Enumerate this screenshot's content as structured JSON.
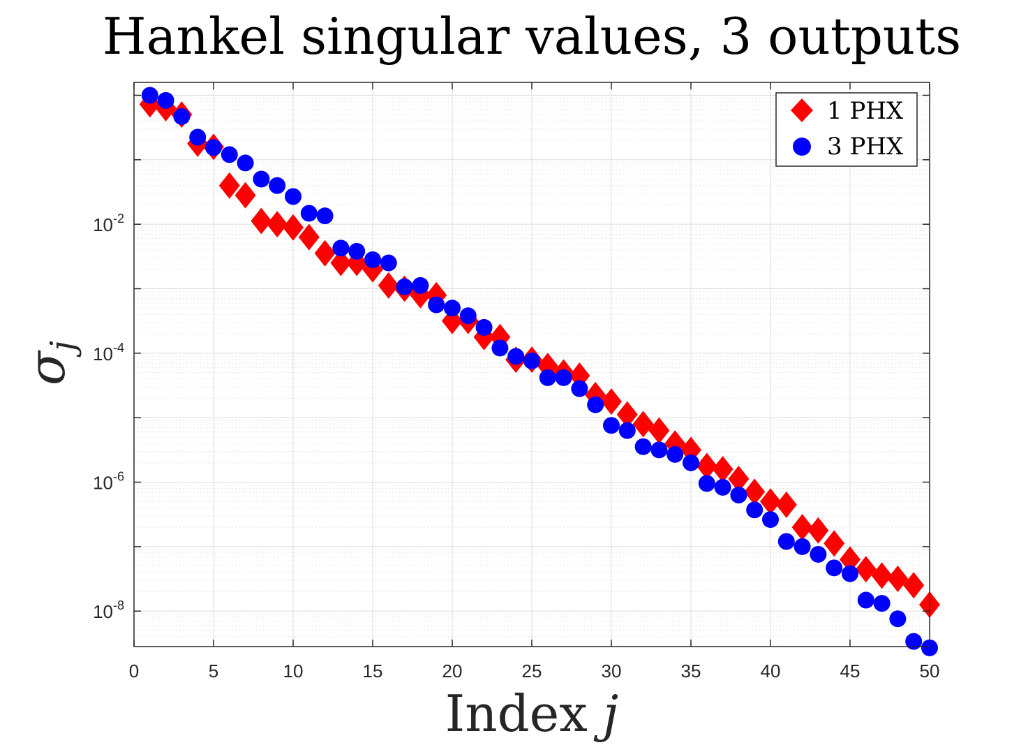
{
  "chart_data": {
    "type": "scatter",
    "title": "Hankel singular values, 3 outputs",
    "xlabel": "Index",
    "xlabel_var": "j",
    "ylabel": "σ",
    "ylabel_sub": "j",
    "xlim": [
      0,
      50
    ],
    "ylim_log10": [
      -8.55,
      0.2
    ],
    "yscale": "log",
    "grid": true,
    "minor_grid": true,
    "legend_position": "top-right",
    "x_ticks": [
      0,
      5,
      10,
      15,
      20,
      25,
      30,
      35,
      40,
      45,
      50
    ],
    "y_ticks": [
      {
        "base": "10",
        "exp": "-2",
        "log10": -2
      },
      {
        "base": "10",
        "exp": "-4",
        "log10": -4
      },
      {
        "base": "10",
        "exp": "-6",
        "log10": -6
      },
      {
        "base": "10",
        "exp": "-8",
        "log10": -8
      }
    ],
    "series": [
      {
        "name": "1 PHX",
        "marker": "diamond",
        "color": "#ff0000",
        "x": [
          1,
          2,
          3,
          4,
          5,
          6,
          7,
          8,
          9,
          10,
          11,
          12,
          13,
          14,
          15,
          16,
          17,
          18,
          19,
          20,
          21,
          22,
          23,
          24,
          25,
          26,
          27,
          28,
          29,
          30,
          31,
          32,
          33,
          34,
          35,
          36,
          37,
          38,
          39,
          40,
          41,
          42,
          43,
          44,
          45,
          46,
          47,
          48,
          49,
          50
        ],
        "log10_values": [
          -0.14,
          -0.2,
          -0.3,
          -0.75,
          -0.8,
          -1.4,
          -1.55,
          -1.95,
          -2.0,
          -2.05,
          -2.2,
          -2.45,
          -2.6,
          -2.6,
          -2.7,
          -2.95,
          -3.0,
          -3.1,
          -3.1,
          -3.5,
          -3.5,
          -3.75,
          -3.75,
          -4.1,
          -4.1,
          -4.2,
          -4.3,
          -4.35,
          -4.65,
          -4.75,
          -4.95,
          -5.1,
          -5.2,
          -5.4,
          -5.5,
          -5.75,
          -5.8,
          -5.95,
          -6.15,
          -6.3,
          -6.35,
          -6.7,
          -6.75,
          -6.95,
          -7.2,
          -7.35,
          -7.45,
          -7.5,
          -7.6,
          -7.9
        ]
      },
      {
        "name": "3 PHX",
        "marker": "circle",
        "color": "#0000ff",
        "x": [
          1,
          2,
          3,
          4,
          5,
          6,
          7,
          8,
          9,
          10,
          11,
          12,
          13,
          14,
          15,
          16,
          17,
          18,
          19,
          20,
          21,
          22,
          23,
          24,
          25,
          26,
          27,
          28,
          29,
          30,
          31,
          32,
          33,
          34,
          35,
          36,
          37,
          38,
          39,
          40,
          41,
          42,
          43,
          44,
          45,
          46,
          47,
          48,
          49,
          50
        ],
        "log10_values": [
          0.0,
          -0.08,
          -0.33,
          -0.65,
          -0.81,
          -0.92,
          -1.05,
          -1.3,
          -1.4,
          -1.57,
          -1.83,
          -1.87,
          -2.37,
          -2.42,
          -2.55,
          -2.6,
          -2.97,
          -2.95,
          -3.25,
          -3.3,
          -3.42,
          -3.6,
          -3.92,
          -4.05,
          -4.12,
          -4.38,
          -4.38,
          -4.55,
          -4.8,
          -5.12,
          -5.2,
          -5.45,
          -5.5,
          -5.57,
          -5.7,
          -6.02,
          -6.08,
          -6.2,
          -6.43,
          -6.58,
          -6.92,
          -7.0,
          -7.12,
          -7.33,
          -7.42,
          -7.83,
          -7.88,
          -8.12,
          -8.47,
          -8.57
        ]
      }
    ]
  }
}
